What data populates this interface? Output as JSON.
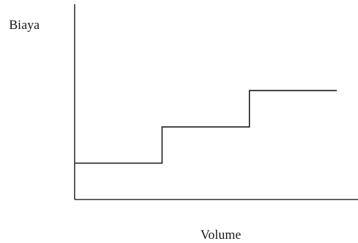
{
  "chart_data": {
    "type": "line",
    "title": "",
    "xlabel": "Volume",
    "ylabel": "Biaya",
    "x": [
      0,
      1,
      1,
      2,
      2,
      3
    ],
    "series": [
      {
        "values": [
          1,
          1,
          2,
          2,
          3,
          3
        ]
      }
    ],
    "xlim": [
      0,
      3.1
    ],
    "ylim": [
      0,
      5.4
    ],
    "grid": false,
    "legend": "none",
    "line_color": "#2b2b2b"
  }
}
